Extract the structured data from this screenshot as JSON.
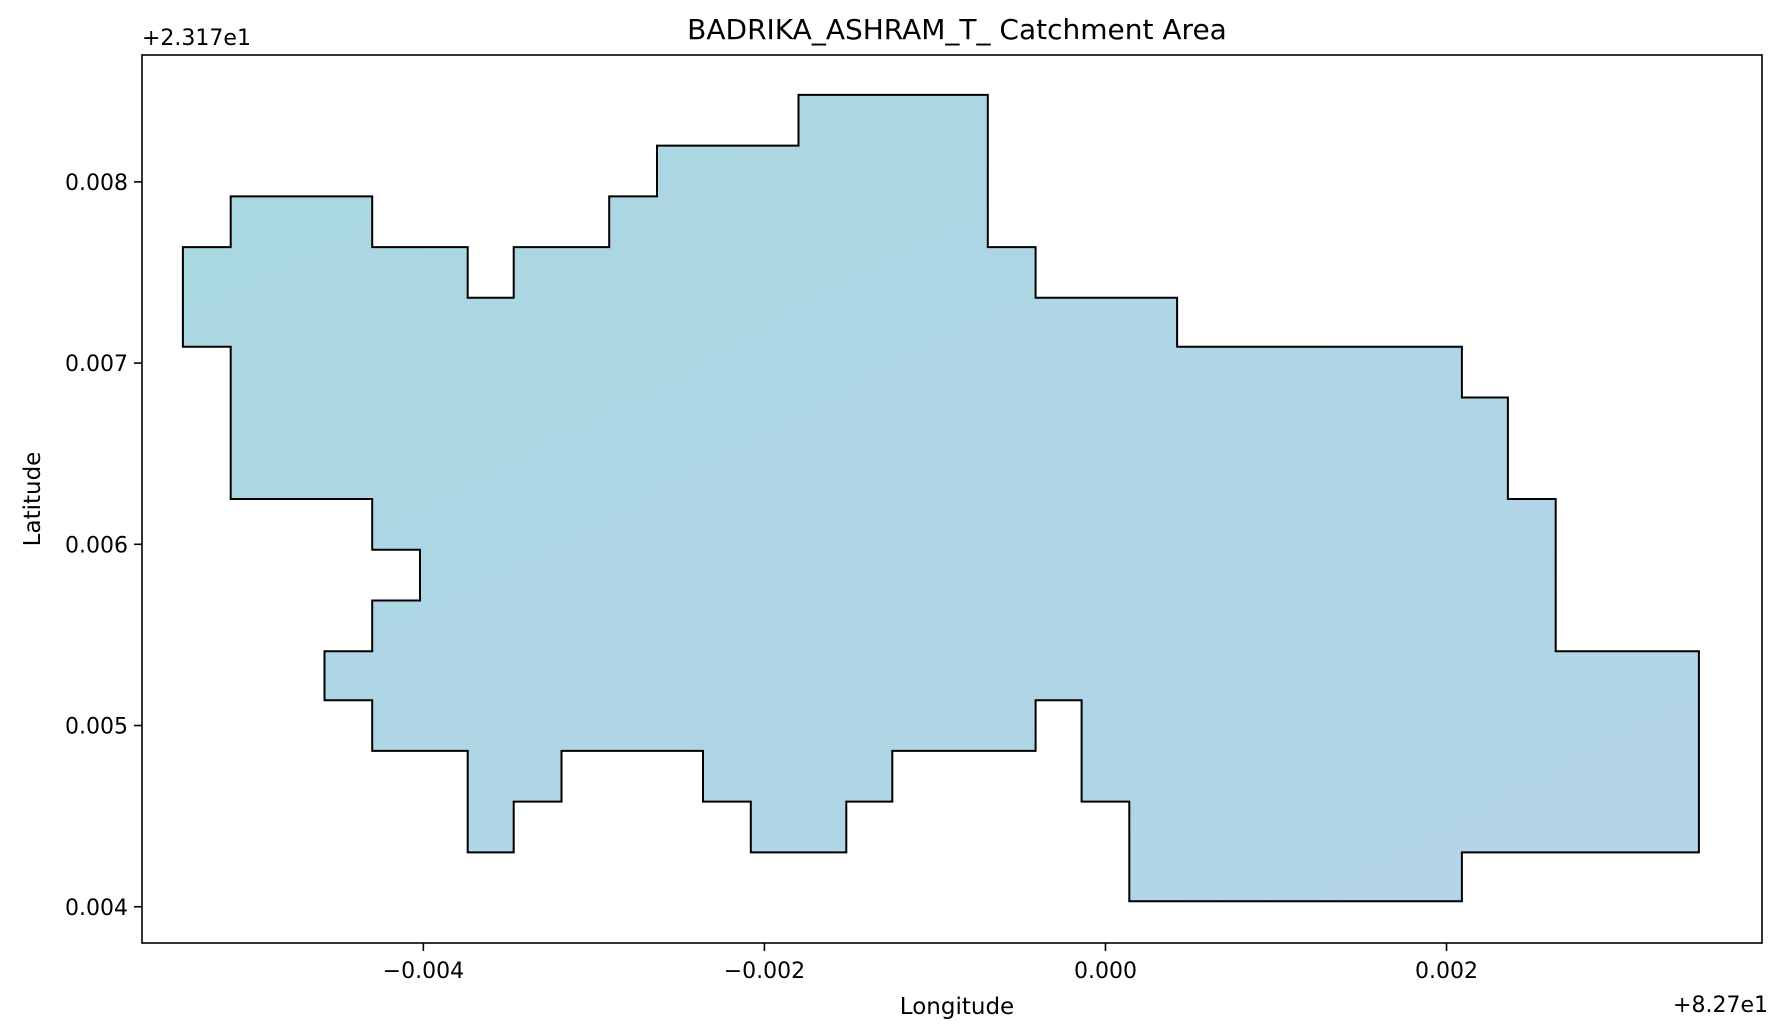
{
  "chart_data": {
    "type": "area",
    "title": "BADRIKA_ASHRAM_T_ Catchment Area",
    "xlabel": "Longitude",
    "ylabel": "Latitude",
    "x_offset_label": "+8.27e1",
    "y_offset_label": "+2.317e1",
    "xlim": [
      -0.00565,
      0.00385
    ],
    "ylim": [
      0.0038,
      0.0087
    ],
    "x_ticks": [
      {
        "value": -0.004,
        "label": "−0.004"
      },
      {
        "value": -0.002,
        "label": "−0.002"
      },
      {
        "value": 0.0,
        "label": "0.000"
      },
      {
        "value": 0.002,
        "label": "0.002"
      }
    ],
    "y_ticks": [
      {
        "value": 0.004,
        "label": "0.004"
      },
      {
        "value": 0.005,
        "label": "0.005"
      },
      {
        "value": 0.006,
        "label": "0.006"
      },
      {
        "value": 0.007,
        "label": "0.007"
      },
      {
        "value": 0.008,
        "label": "0.008"
      }
    ],
    "grid": false,
    "fill_colors": [
      "#a9d8e0",
      "#b4d4ea"
    ],
    "edge_color": "#000000",
    "polygon": [
      [
        -0.00541,
        0.00764
      ],
      [
        -0.00513,
        0.00764
      ],
      [
        -0.00513,
        0.00792
      ],
      [
        -0.0043,
        0.00792
      ],
      [
        -0.0043,
        0.00764
      ],
      [
        -0.00374,
        0.00764
      ],
      [
        -0.00374,
        0.00736
      ],
      [
        -0.00347,
        0.00736
      ],
      [
        -0.00347,
        0.00764
      ],
      [
        -0.00291,
        0.00764
      ],
      [
        -0.00291,
        0.00792
      ],
      [
        -0.00263,
        0.00792
      ],
      [
        -0.00263,
        0.0082
      ],
      [
        -0.0018,
        0.0082
      ],
      [
        -0.0018,
        0.00848
      ],
      [
        -0.00069,
        0.00848
      ],
      [
        -0.00069,
        0.00764
      ],
      [
        -0.00041,
        0.00764
      ],
      [
        -0.00041,
        0.00736
      ],
      [
        0.00042,
        0.00736
      ],
      [
        0.00042,
        0.00709
      ],
      [
        0.00209,
        0.00709
      ],
      [
        0.00209,
        0.00681
      ],
      [
        0.00236,
        0.00681
      ],
      [
        0.00236,
        0.00625
      ],
      [
        0.00264,
        0.00625
      ],
      [
        0.00264,
        0.00541
      ],
      [
        0.00348,
        0.00541
      ],
      [
        0.00348,
        0.0043
      ],
      [
        0.00209,
        0.0043
      ],
      [
        0.00209,
        0.00403
      ],
      [
        0.00014,
        0.00403
      ],
      [
        0.00014,
        0.00458
      ],
      [
        -0.00014,
        0.00458
      ],
      [
        -0.00014,
        0.00514
      ],
      [
        -0.00041,
        0.00514
      ],
      [
        -0.00041,
        0.00486
      ],
      [
        -0.00125,
        0.00486
      ],
      [
        -0.00125,
        0.00458
      ],
      [
        -0.00152,
        0.00458
      ],
      [
        -0.00152,
        0.0043
      ],
      [
        -0.00208,
        0.0043
      ],
      [
        -0.00208,
        0.00458
      ],
      [
        -0.00236,
        0.00458
      ],
      [
        -0.00236,
        0.00486
      ],
      [
        -0.00319,
        0.00486
      ],
      [
        -0.00319,
        0.00458
      ],
      [
        -0.00347,
        0.00458
      ],
      [
        -0.00347,
        0.0043
      ],
      [
        -0.00374,
        0.0043
      ],
      [
        -0.00374,
        0.00486
      ],
      [
        -0.0043,
        0.00486
      ],
      [
        -0.0043,
        0.00514
      ],
      [
        -0.00458,
        0.00514
      ],
      [
        -0.00458,
        0.00541
      ],
      [
        -0.0043,
        0.00541
      ],
      [
        -0.0043,
        0.00569
      ],
      [
        -0.00402,
        0.00569
      ],
      [
        -0.00402,
        0.00597
      ],
      [
        -0.0043,
        0.00597
      ],
      [
        -0.0043,
        0.00625
      ],
      [
        -0.00513,
        0.00625
      ],
      [
        -0.00513,
        0.00709
      ],
      [
        -0.00541,
        0.00709
      ]
    ]
  }
}
